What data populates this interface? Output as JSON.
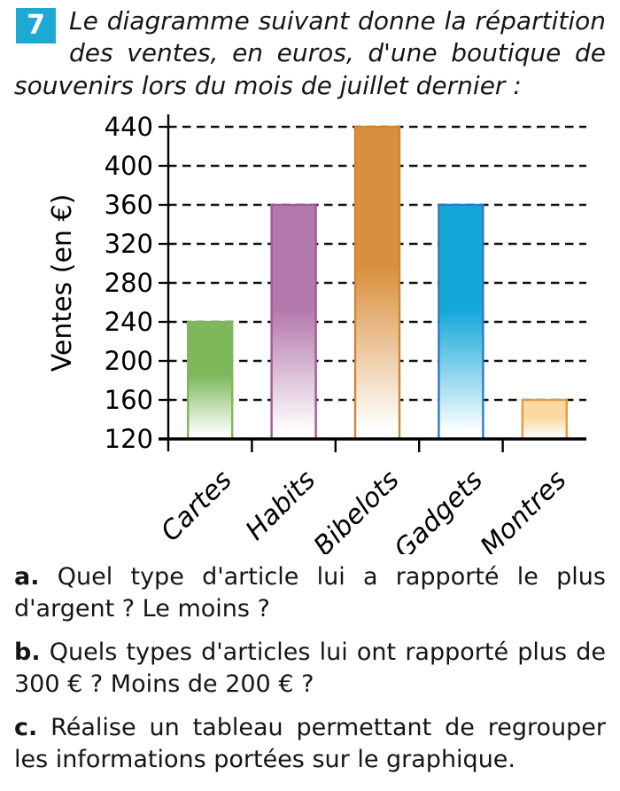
{
  "exercise": {
    "number": "7",
    "badge_color": "#1ca9d4",
    "intro": "Le diagramme suivant donne la répartition des ventes, en euros, d'une boutique de souvenirs lors du mois de juillet dernier :"
  },
  "chart_data": {
    "type": "bar",
    "title": "",
    "xlabel": "",
    "ylabel": "Ventes (en €)",
    "categories": [
      "Cartes",
      "Habits",
      "Bibelots",
      "Gadgets",
      "Montres"
    ],
    "values": [
      240,
      360,
      440,
      360,
      160
    ],
    "ylim": [
      120,
      440
    ],
    "yticks": [
      120,
      160,
      200,
      240,
      280,
      320,
      360,
      400,
      440
    ],
    "grid": "horizontal-dashed",
    "legend": "none",
    "bar_colors": [
      "#7db85b",
      "#b479ac",
      "#d9903e",
      "#14a7da",
      "#fbd9a1"
    ],
    "bar_borders": [
      "#7fb75e",
      "#a2589a",
      "#cd8536",
      "#2d7cbe",
      "#e99b43"
    ],
    "axis_color": "#000000",
    "gridline_color": "#101010",
    "bar_gradient_to": "#ffffff"
  },
  "questions": [
    {
      "label": "a.",
      "text": "Quel type d'article lui a rapporté le plus d'argent ? Le moins ?"
    },
    {
      "label": "b.",
      "text": "Quels types d'articles lui ont rapporté plus de 300 € ? Moins de 200 € ?"
    },
    {
      "label": "c.",
      "text": "Réalise un tableau permettant de regrouper les informations portées sur le graphique."
    }
  ]
}
